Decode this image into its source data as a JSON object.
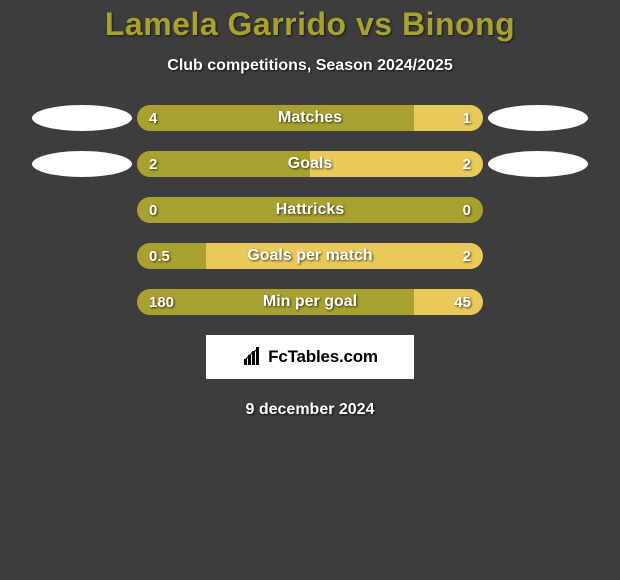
{
  "title": "Lamela Garrido vs Binong",
  "subtitle": "Club competitions, Season 2024/2025",
  "date": "9 december 2024",
  "colors": {
    "background": "#3d3d3d",
    "title": "#a8a12f",
    "text": "#ffffff",
    "left_bar": "#a8a12f",
    "right_bar": "#e8c95a",
    "ellipse": "#ffffff",
    "branding_bg": "#ffffff"
  },
  "branding": {
    "text": "FcTables.com",
    "icon": "bar-chart-icon"
  },
  "rows": [
    {
      "label": "Matches",
      "left_value": "4",
      "right_value": "1",
      "left_pct": 80,
      "right_pct": 20,
      "show_left_icon": true,
      "show_right_icon": true
    },
    {
      "label": "Goals",
      "left_value": "2",
      "right_value": "2",
      "left_pct": 50,
      "right_pct": 50,
      "show_left_icon": true,
      "show_right_icon": true
    },
    {
      "label": "Hattricks",
      "left_value": "0",
      "right_value": "0",
      "left_pct": 100,
      "right_pct": 0,
      "show_left_icon": false,
      "show_right_icon": false
    },
    {
      "label": "Goals per match",
      "left_value": "0.5",
      "right_value": "2",
      "left_pct": 20,
      "right_pct": 80,
      "show_left_icon": false,
      "show_right_icon": false
    },
    {
      "label": "Min per goal",
      "left_value": "180",
      "right_value": "45",
      "left_pct": 80,
      "right_pct": 20,
      "show_left_icon": false,
      "show_right_icon": false
    }
  ]
}
